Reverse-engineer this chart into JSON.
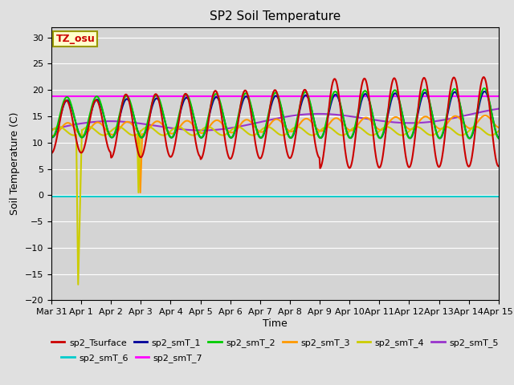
{
  "title": "SP2 Soil Temperature",
  "ylabel": "Soil Temperature (C)",
  "xlabel": "Time",
  "annotation": "TZ_osu",
  "ylim": [
    -20,
    32
  ],
  "yticks": [
    -20,
    -15,
    -10,
    -5,
    0,
    5,
    10,
    15,
    20,
    25,
    30
  ],
  "figsize": [
    6.4,
    4.8
  ],
  "dpi": 100,
  "background_color": "#e0e0e0",
  "plot_bg_color": "#d4d4d4",
  "colors": {
    "sp2_Tsurface": "#cc0000",
    "sp2_smT_1": "#000099",
    "sp2_smT_2": "#00cc00",
    "sp2_smT_3": "#ff9900",
    "sp2_smT_4": "#cccc00",
    "sp2_smT_5": "#9933cc",
    "sp2_smT_6": "#00cccc",
    "sp2_smT_7": "#ff00ff"
  },
  "xtick_labels": [
    "Mar 31",
    "Apr 1",
    "Apr 2",
    "Apr 3",
    "Apr 4",
    "Apr 5",
    "Apr 6",
    "Apr 7",
    "Apr 8",
    "Apr 9",
    "Apr 10",
    "Apr 11",
    "Apr 12",
    "Apr 13",
    "Apr 14",
    "Apr 15"
  ],
  "smT7_value": 18.8,
  "smT6_value": -0.2,
  "legend_order": [
    "sp2_Tsurface",
    "sp2_smT_1",
    "sp2_smT_2",
    "sp2_smT_3",
    "sp2_smT_4",
    "sp2_smT_5",
    "sp2_smT_6",
    "sp2_smT_7"
  ]
}
